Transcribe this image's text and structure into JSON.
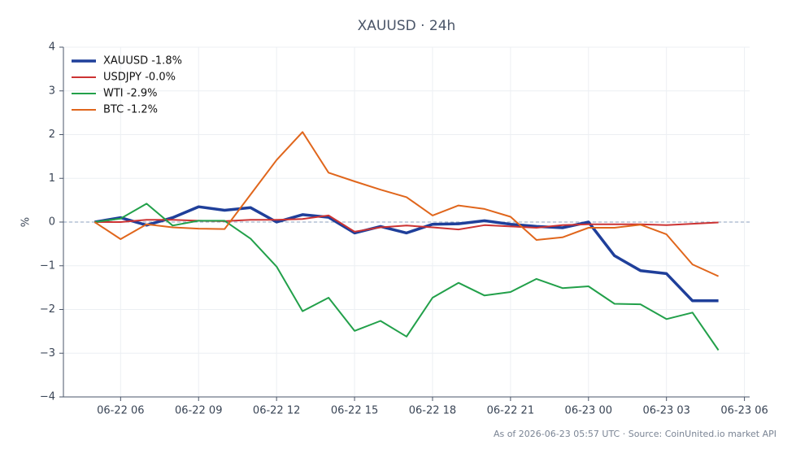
{
  "chart_data": {
    "type": "line",
    "title": "XAUUSD · 24h",
    "ylabel": "%",
    "footnote": "As of 2026-06-23 05:57 UTC · Source: CoinUnited.io market API",
    "x": [
      "06-22 05",
      "06-22 06",
      "06-22 07",
      "06-22 08",
      "06-22 09",
      "06-22 10",
      "06-22 11",
      "06-22 12",
      "06-22 13",
      "06-22 14",
      "06-22 15",
      "06-22 16",
      "06-22 17",
      "06-22 18",
      "06-22 19",
      "06-22 20",
      "06-22 21",
      "06-22 22",
      "06-22 23",
      "06-23 00",
      "06-23 01",
      "06-23 02",
      "06-23 03",
      "06-23 04",
      "06-23 05"
    ],
    "xlim": [
      "06-22 03:48",
      "06-23 06:12"
    ],
    "xticks": [
      "06-22 06",
      "06-22 09",
      "06-22 12",
      "06-22 15",
      "06-22 18",
      "06-22 21",
      "06-23 00",
      "06-23 03",
      "06-23 06"
    ],
    "ylim": [
      -4,
      4
    ],
    "yticks": [
      {
        "value": -4,
        "label": "−4"
      },
      {
        "value": -3,
        "label": "−3"
      },
      {
        "value": -2,
        "label": "−2"
      },
      {
        "value": -1,
        "label": "−1"
      },
      0,
      1,
      2,
      3,
      4
    ],
    "grid": true,
    "legend": "upper left",
    "zero_line": 0,
    "series": [
      {
        "name": "XAUUSD -1.8%",
        "color": "#1f3f9a",
        "width": 3.5,
        "values": [
          0,
          0.1,
          -0.07,
          0.1,
          0.35,
          0.27,
          0.33,
          0,
          0.17,
          0.11,
          -0.25,
          -0.1,
          -0.25,
          -0.05,
          -0.04,
          0.03,
          -0.05,
          -0.1,
          -0.13,
          0,
          -0.77,
          -1.11,
          -1.18,
          -1.8,
          -1.8
        ]
      },
      {
        "name": "USDJPY -0.0%",
        "color": "#cc3333",
        "width": 2,
        "values": [
          0,
          0,
          0.05,
          0.05,
          0.03,
          0.02,
          0.05,
          0.05,
          0.07,
          0.15,
          -0.22,
          -0.12,
          -0.08,
          -0.12,
          -0.17,
          -0.07,
          -0.1,
          -0.13,
          -0.07,
          -0.05,
          -0.05,
          -0.05,
          -0.07,
          -0.04,
          -0.01
        ]
      },
      {
        "name": "WTI -2.9%",
        "color": "#22a04a",
        "width": 2,
        "values": [
          0,
          0.08,
          0.42,
          -0.08,
          0.03,
          0.03,
          -0.38,
          -1.02,
          -2.04,
          -1.73,
          -2.49,
          -2.26,
          -2.62,
          -1.73,
          -1.39,
          -1.68,
          -1.6,
          -1.3,
          -1.51,
          -1.47,
          -1.87,
          -1.88,
          -2.22,
          -2.07,
          -2.93
        ]
      },
      {
        "name": "BTC -1.2%",
        "color": "#e0661c",
        "width": 2,
        "values": [
          0,
          -0.39,
          -0.05,
          -0.12,
          -0.15,
          -0.16,
          0.63,
          1.42,
          2.06,
          1.13,
          0.93,
          0.74,
          0.57,
          0.15,
          0.38,
          0.3,
          0.12,
          -0.41,
          -0.35,
          -0.13,
          -0.13,
          -0.06,
          -0.28,
          -0.97,
          -1.24
        ]
      }
    ]
  }
}
